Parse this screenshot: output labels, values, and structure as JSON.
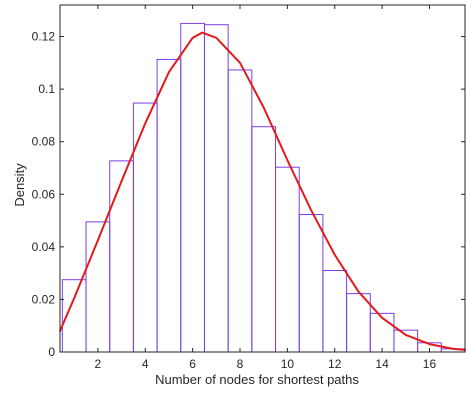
{
  "chart_data": {
    "type": "bar",
    "title": "",
    "xlabel": "Number of nodes for shortest paths",
    "ylabel": "Density",
    "xlim": [
      0.4,
      17.5
    ],
    "ylim": [
      0,
      0.132
    ],
    "xticks": [
      2,
      4,
      6,
      8,
      10,
      12,
      14,
      16
    ],
    "xtick_labels": [
      "2",
      "4",
      "6",
      "8",
      "10",
      "12",
      "14",
      "16"
    ],
    "yticks": [
      0,
      0.02,
      0.04,
      0.06,
      0.08,
      0.1,
      0.12
    ],
    "ytick_labels": [
      "0",
      "0.02",
      "0.04",
      "0.06",
      "0.08",
      "0.1",
      "0.12"
    ],
    "grid": false,
    "series": [
      {
        "kind": "histogram",
        "bins": [
          {
            "x0": 0.5,
            "x1": 1.5,
            "value": 0.0275
          },
          {
            "x0": 1.5,
            "x1": 2.5,
            "value": 0.0495
          },
          {
            "x0": 2.5,
            "x1": 3.5,
            "value": 0.0727
          },
          {
            "x0": 3.5,
            "x1": 4.5,
            "value": 0.0947
          },
          {
            "x0": 4.5,
            "x1": 5.5,
            "value": 0.1113
          },
          {
            "x0": 5.5,
            "x1": 6.5,
            "value": 0.125
          },
          {
            "x0": 6.5,
            "x1": 7.5,
            "value": 0.1245
          },
          {
            "x0": 7.5,
            "x1": 8.5,
            "value": 0.1073
          },
          {
            "x0": 8.5,
            "x1": 9.5,
            "value": 0.0857
          },
          {
            "x0": 9.5,
            "x1": 10.5,
            "value": 0.0703
          },
          {
            "x0": 10.5,
            "x1": 11.5,
            "value": 0.0523
          },
          {
            "x0": 11.5,
            "x1": 12.5,
            "value": 0.031
          },
          {
            "x0": 12.5,
            "x1": 13.5,
            "value": 0.0222
          },
          {
            "x0": 13.5,
            "x1": 14.5,
            "value": 0.0147
          },
          {
            "x0": 14.5,
            "x1": 15.5,
            "value": 0.0083
          },
          {
            "x0": 15.5,
            "x1": 16.5,
            "value": 0.0035
          },
          {
            "x0": 16.5,
            "x1": 17.5,
            "value": 0.0012
          }
        ],
        "color": "#7b3fe4"
      },
      {
        "kind": "line",
        "x": [
          0.4,
          1,
          2,
          3,
          4,
          5,
          6,
          6.4,
          7,
          8,
          9,
          10,
          11,
          12,
          13,
          14,
          15,
          16,
          17,
          17.5
        ],
        "y": [
          0.008,
          0.0205,
          0.0425,
          0.065,
          0.087,
          0.1065,
          0.1195,
          0.1215,
          0.1195,
          0.11,
          0.093,
          0.073,
          0.054,
          0.037,
          0.023,
          0.013,
          0.0065,
          0.003,
          0.0012,
          0.0008
        ],
        "color": "#e31a1c"
      }
    ]
  }
}
